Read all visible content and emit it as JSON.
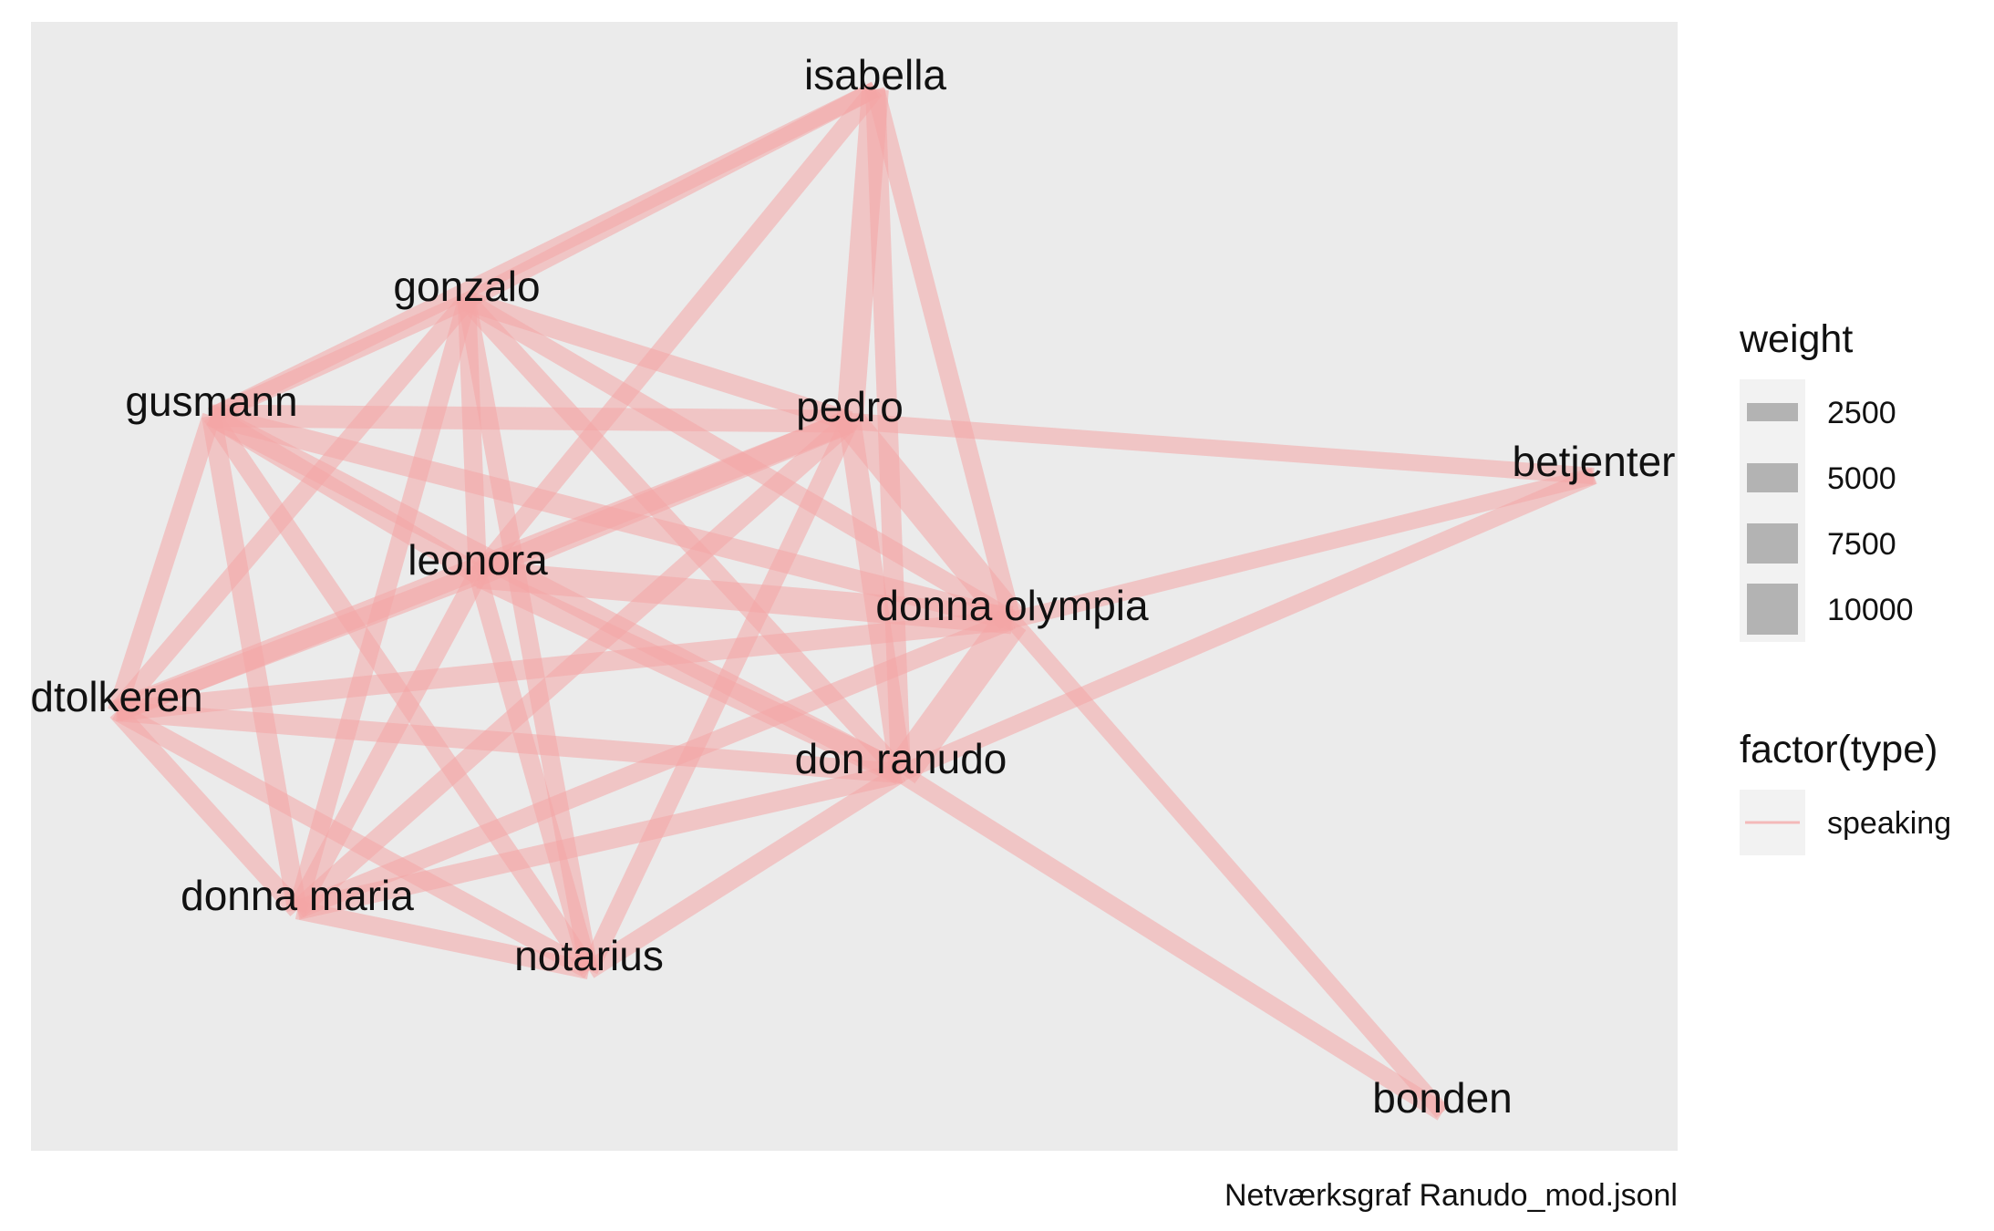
{
  "caption": "Netværksgraf Ranudo_mod.jsonl",
  "colors": {
    "panel": "#ebebeb",
    "edge": "#f4a6a6",
    "legend_key": "#b3b3b3",
    "legend_bg": "#f2f2f2"
  },
  "legend": {
    "weight": {
      "title": "weight",
      "items": [
        {
          "label": "2500",
          "value": 2500
        },
        {
          "label": "5000",
          "value": 5000
        },
        {
          "label": "7500",
          "value": 7500
        },
        {
          "label": "10000",
          "value": 10000
        }
      ]
    },
    "type": {
      "title": "factor(type)",
      "items": [
        {
          "label": "speaking"
        }
      ]
    }
  },
  "nodes": [
    {
      "id": "isabella",
      "label": "isabella"
    },
    {
      "id": "gonzalo",
      "label": "gonzalo"
    },
    {
      "id": "gusmann",
      "label": "gusmann"
    },
    {
      "id": "pedro",
      "label": "pedro"
    },
    {
      "id": "betjenter",
      "label": "betjenter"
    },
    {
      "id": "leonora",
      "label": "leonora"
    },
    {
      "id": "donna_olympia",
      "label": "donna olympia"
    },
    {
      "id": "dtolkeren",
      "label": "dtolkeren"
    },
    {
      "id": "don_ranudo",
      "label": "don ranudo"
    },
    {
      "id": "donna_maria",
      "label": "donna maria"
    },
    {
      "id": "notarius",
      "label": "notarius"
    },
    {
      "id": "bonden",
      "label": "bonden"
    }
  ],
  "edges": [
    {
      "source": "isabella",
      "target": "gonzalo",
      "weight": 1500
    },
    {
      "source": "isabella",
      "target": "gusmann",
      "weight": 1500
    },
    {
      "source": "isabella",
      "target": "leonora",
      "weight": 2000
    },
    {
      "source": "isabella",
      "target": "pedro",
      "weight": 5500
    },
    {
      "source": "isabella",
      "target": "donna_olympia",
      "weight": 2000
    },
    {
      "source": "isabella",
      "target": "don_ranudo",
      "weight": 2500
    },
    {
      "source": "gonzalo",
      "target": "gusmann",
      "weight": 1500
    },
    {
      "source": "gonzalo",
      "target": "pedro",
      "weight": 2500
    },
    {
      "source": "gonzalo",
      "target": "leonora",
      "weight": 2000
    },
    {
      "source": "gonzalo",
      "target": "donna_olympia",
      "weight": 2000
    },
    {
      "source": "gonzalo",
      "target": "don_ranudo",
      "weight": 2000
    },
    {
      "source": "gonzalo",
      "target": "dtolkeren",
      "weight": 2000
    },
    {
      "source": "gonzalo",
      "target": "donna_maria",
      "weight": 2000
    },
    {
      "source": "gonzalo",
      "target": "notarius",
      "weight": 2000
    },
    {
      "source": "gusmann",
      "target": "pedro",
      "weight": 3500
    },
    {
      "source": "gusmann",
      "target": "leonora",
      "weight": 2500
    },
    {
      "source": "gusmann",
      "target": "donna_olympia",
      "weight": 3000
    },
    {
      "source": "gusmann",
      "target": "dtolkeren",
      "weight": 2000
    },
    {
      "source": "gusmann",
      "target": "donna_maria",
      "weight": 2500
    },
    {
      "source": "gusmann",
      "target": "notarius",
      "weight": 2000
    },
    {
      "source": "gusmann",
      "target": "don_ranudo",
      "weight": 3000
    },
    {
      "source": "pedro",
      "target": "betjenter",
      "weight": 1500
    },
    {
      "source": "pedro",
      "target": "leonora",
      "weight": 4000
    },
    {
      "source": "pedro",
      "target": "donna_olympia",
      "weight": 8000
    },
    {
      "source": "pedro",
      "target": "don_ranudo",
      "weight": 3500
    },
    {
      "source": "pedro",
      "target": "dtolkeren",
      "weight": 3500
    },
    {
      "source": "pedro",
      "target": "donna_maria",
      "weight": 2500
    },
    {
      "source": "pedro",
      "target": "notarius",
      "weight": 2000
    },
    {
      "source": "betjenter",
      "target": "donna_olympia",
      "weight": 1500
    },
    {
      "source": "betjenter",
      "target": "don_ranudo",
      "weight": 1500
    },
    {
      "source": "leonora",
      "target": "donna_olympia",
      "weight": 6000
    },
    {
      "source": "leonora",
      "target": "don_ranudo",
      "weight": 4000
    },
    {
      "source": "leonora",
      "target": "dtolkeren",
      "weight": 2500
    },
    {
      "source": "leonora",
      "target": "donna_maria",
      "weight": 2500
    },
    {
      "source": "leonora",
      "target": "notarius",
      "weight": 2000
    },
    {
      "source": "donna_olympia",
      "target": "don_ranudo",
      "weight": 10000
    },
    {
      "source": "donna_olympia",
      "target": "dtolkeren",
      "weight": 2500
    },
    {
      "source": "donna_olympia",
      "target": "donna_maria",
      "weight": 2000
    },
    {
      "source": "donna_olympia",
      "target": "bonden",
      "weight": 1500
    },
    {
      "source": "don_ranudo",
      "target": "dtolkeren",
      "weight": 2500
    },
    {
      "source": "don_ranudo",
      "target": "donna_maria",
      "weight": 2500
    },
    {
      "source": "don_ranudo",
      "target": "notarius",
      "weight": 2000
    },
    {
      "source": "don_ranudo",
      "target": "bonden",
      "weight": 2000
    },
    {
      "source": "dtolkeren",
      "target": "donna_maria",
      "weight": 2000
    },
    {
      "source": "dtolkeren",
      "target": "notarius",
      "weight": 2000
    },
    {
      "source": "donna_maria",
      "target": "notarius",
      "weight": 2000
    }
  ]
}
